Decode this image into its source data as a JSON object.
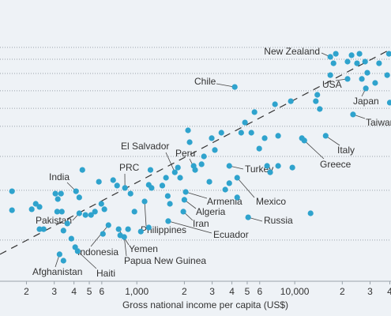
{
  "chart_data": {
    "type": "scatter",
    "x_label": "Gross national income per capita (US$)",
    "xscale": "log",
    "xlim": [
      136,
      40700
    ],
    "ylim": [
      0,
      100
    ],
    "grid": true,
    "color": "#2fa3cd",
    "xticks": [
      {
        "value": 200,
        "label": "2"
      },
      {
        "value": 300,
        "label": "3"
      },
      {
        "value": 400,
        "label": "4"
      },
      {
        "value": 500,
        "label": "5"
      },
      {
        "value": 600,
        "label": "6"
      },
      {
        "value": 1000,
        "label": "1,000"
      },
      {
        "value": 2000,
        "label": "2"
      },
      {
        "value": 3000,
        "label": "3"
      },
      {
        "value": 4000,
        "label": "4"
      },
      {
        "value": 5000,
        "label": "5"
      },
      {
        "value": 6000,
        "label": "6"
      },
      {
        "value": 10000,
        "label": "10,000"
      },
      {
        "value": 20000,
        "label": "2"
      },
      {
        "value": 30000,
        "label": "3"
      },
      {
        "value": 40000,
        "label": "4"
      }
    ],
    "yticks": [
      18.7,
      39.7,
      54,
      66.7,
      74.3,
      81.7,
      89,
      95,
      100
    ],
    "trend": {
      "x": [
        136,
        40700
      ],
      "y": [
        12.7,
        99.3
      ]
    },
    "labels": [
      "New Zealand",
      "USA",
      "Chile",
      "Japan",
      "Taiwan",
      "Italy",
      "Greece",
      "El Salvador",
      "Peru",
      "Turkey",
      "PRC",
      "India",
      "Mexico",
      "Armenia",
      "Algeria",
      "Russia",
      "Iran",
      "Pakistan",
      "Philippines",
      "Ecuador",
      "Yemen",
      "Indonesia",
      "Papua New Guinea",
      "Haiti",
      "Afghanistan",
      null,
      null,
      null,
      null,
      null,
      null,
      null,
      null,
      null,
      null,
      null,
      null,
      null,
      null,
      null,
      null,
      null,
      null,
      null,
      null,
      null,
      null,
      null,
      null,
      null,
      null,
      null,
      null,
      null,
      null,
      null,
      null,
      null,
      null,
      null,
      null,
      null,
      null,
      null,
      null,
      null,
      null,
      null,
      null,
      null,
      null,
      null,
      null,
      null,
      null,
      null,
      null,
      null,
      null,
      null,
      null,
      null,
      null,
      null,
      null,
      null,
      null,
      null,
      null,
      null,
      null,
      null,
      null,
      null,
      null,
      null,
      null,
      null
    ],
    "x": [
      16800,
      21600,
      4170,
      28200,
      23400,
      15700,
      11500,
      1740,
      2340,
      3850,
      841,
      412,
      4320,
      2040,
      2000,
      5070,
      1970,
      432,
      1120,
      1580,
      767,
      661,
      832,
      422,
      324,
      162,
      162,
      216,
      229,
      242,
      242,
      257,
      305,
      316,
      331,
      313,
      335,
      343,
      363,
      385,
      407,
      343,
      432,
      452,
      473,
      513,
      543,
      575,
      596,
      623,
      610,
      708,
      750,
      785,
      880,
      912,
      966,
      1060,
      1190,
      1220,
      1240,
      1190,
      1450,
      1530,
      1620,
      1570,
      1820,
      1880,
      2110,
      2160,
      2290,
      2570,
      2660,
      2880,
      2980,
      3120,
      3430,
      3630,
      3850,
      4320,
      4580,
      4840,
      5310,
      5560,
      5960,
      6450,
      6680,
      6990,
      7500,
      7850,
      7850,
      9440,
      9660,
      11100,
      12600,
      13600,
      13900,
      14400,
      16800,
      17600,
      18200,
      21600,
      22900,
      24800,
      25700,
      26600,
      27900,
      28800,
      32300,
      34200,
      39500,
      40000,
      38500
    ],
    "y": [
      96,
      86.7,
      83.3,
      82.7,
      71.7,
      62.7,
      60.7,
      47.3,
      48.3,
      50,
      40.7,
      39.3,
      45,
      39,
      35.7,
      28.3,
      30.7,
      30,
      35,
      26.7,
      23.3,
      25,
      20,
      14,
      12.7,
      39.3,
      31.3,
      31.7,
      34,
      32.7,
      23.3,
      23.3,
      38.3,
      36,
      38.3,
      30.7,
      30.7,
      22.7,
      25.7,
      19.3,
      15.7,
      10,
      36.7,
      48.3,
      29.3,
      29.3,
      30.7,
      43.3,
      34,
      31.7,
      21.3,
      44,
      41.7,
      20.7,
      23.3,
      38.3,
      30.7,
      22.3,
      42,
      48.3,
      40.7,
      24,
      41.7,
      45,
      34,
      37.3,
      49.3,
      45,
      65,
      60,
      50,
      50.7,
      54,
      43.3,
      61.7,
      56.7,
      64,
      40,
      42.7,
      36.7,
      64,
      68.3,
      64,
      72.7,
      57.3,
      61.7,
      50,
      47.3,
      76,
      50,
      62.7,
      77.3,
      49.3,
      61.7,
      30,
      77.3,
      80,
      74,
      88.3,
      93.3,
      97.3,
      94,
      96.7,
      93.3,
      97.3,
      86.7,
      94,
      89.3,
      85,
      93.3,
      97.3,
      76.7,
      88.3
    ]
  }
}
